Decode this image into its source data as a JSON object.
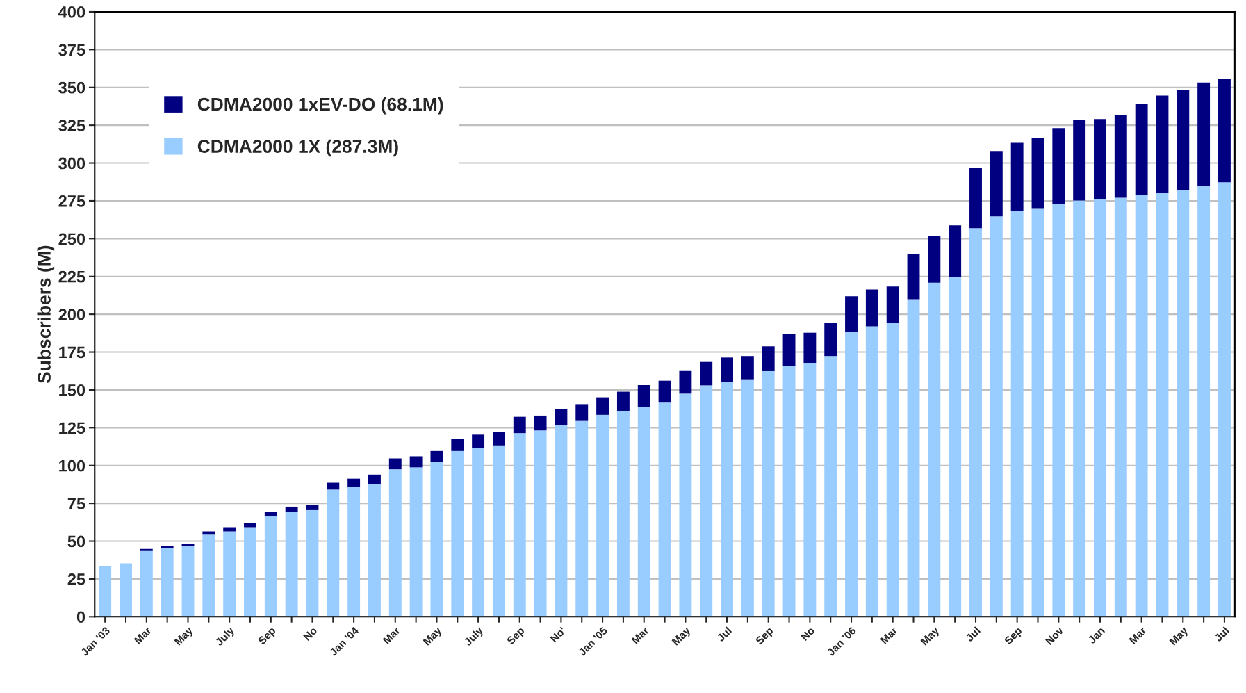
{
  "chart_data": {
    "type": "bar",
    "stacked": true,
    "ylabel": "Subscribers (M)",
    "categories": [
      "Jan '03",
      null,
      "Mar",
      null,
      "May",
      null,
      "July",
      null,
      "Sep",
      null,
      "No",
      null,
      "Jan '04",
      null,
      "Mar",
      null,
      "May",
      null,
      "July",
      null,
      "Sep",
      null,
      "No'",
      null,
      "Jan '05",
      null,
      "Mar",
      null,
      "May",
      null,
      "Jul",
      null,
      "Sep",
      null,
      "No",
      null,
      "Jan '06",
      null,
      "Mar",
      null,
      "May",
      null,
      "Jul",
      null,
      "Sep",
      null,
      "Nov",
      null,
      "Jan",
      null,
      "Mar",
      null,
      "May",
      null,
      "Jul"
    ],
    "series": [
      {
        "name": "CDMA2000 1X (287.3M)",
        "color": "#99ccff",
        "values": [
          33.5,
          35.3,
          43.9,
          45.7,
          46.6,
          54.7,
          56.5,
          59.2,
          66.5,
          69.2,
          70.5,
          84.1,
          85.9,
          87.7,
          97.5,
          98.8,
          102.3,
          109.6,
          111.4,
          113.3,
          121.4,
          123.2,
          126.7,
          129.9,
          133.5,
          136.2,
          138.8,
          141.6,
          147.5,
          153.0,
          155.1,
          157.0,
          162.4,
          166.0,
          167.9,
          172.4,
          188.3,
          192.0,
          194.6,
          210.0,
          220.9,
          224.8,
          256.9,
          264.7,
          268.3,
          270.2,
          272.8,
          275.2,
          276.2,
          277.0,
          279.1,
          280.1,
          282.0,
          285.1,
          287.3
        ]
      },
      {
        "name": "CDMA2000 1xEV-DO (68.1M)",
        "color": "#000080",
        "values": [
          0,
          0,
          0.9,
          0.9,
          1.8,
          1.8,
          2.7,
          2.8,
          2.7,
          3.6,
          3.6,
          4.5,
          5.4,
          6.3,
          7.2,
          7.3,
          7.3,
          8.1,
          9.0,
          8.9,
          10.8,
          9.8,
          10.8,
          10.7,
          11.6,
          12.6,
          14.4,
          14.5,
          15.0,
          15.5,
          16.3,
          15.4,
          16.4,
          21.1,
          19.9,
          21.8,
          23.6,
          24.4,
          23.7,
          29.6,
          30.6,
          34.0,
          40.0,
          43.2,
          45.1,
          46.6,
          50.3,
          53.2,
          52.9,
          54.8,
          60.0,
          64.5,
          66.3,
          68.1,
          68.1
        ]
      }
    ],
    "ylim": [
      0,
      400
    ],
    "yticks": [
      0,
      25,
      50,
      75,
      100,
      125,
      150,
      175,
      200,
      225,
      250,
      275,
      300,
      325,
      350,
      375,
      400
    ],
    "grid": "y",
    "legend": "top left"
  }
}
